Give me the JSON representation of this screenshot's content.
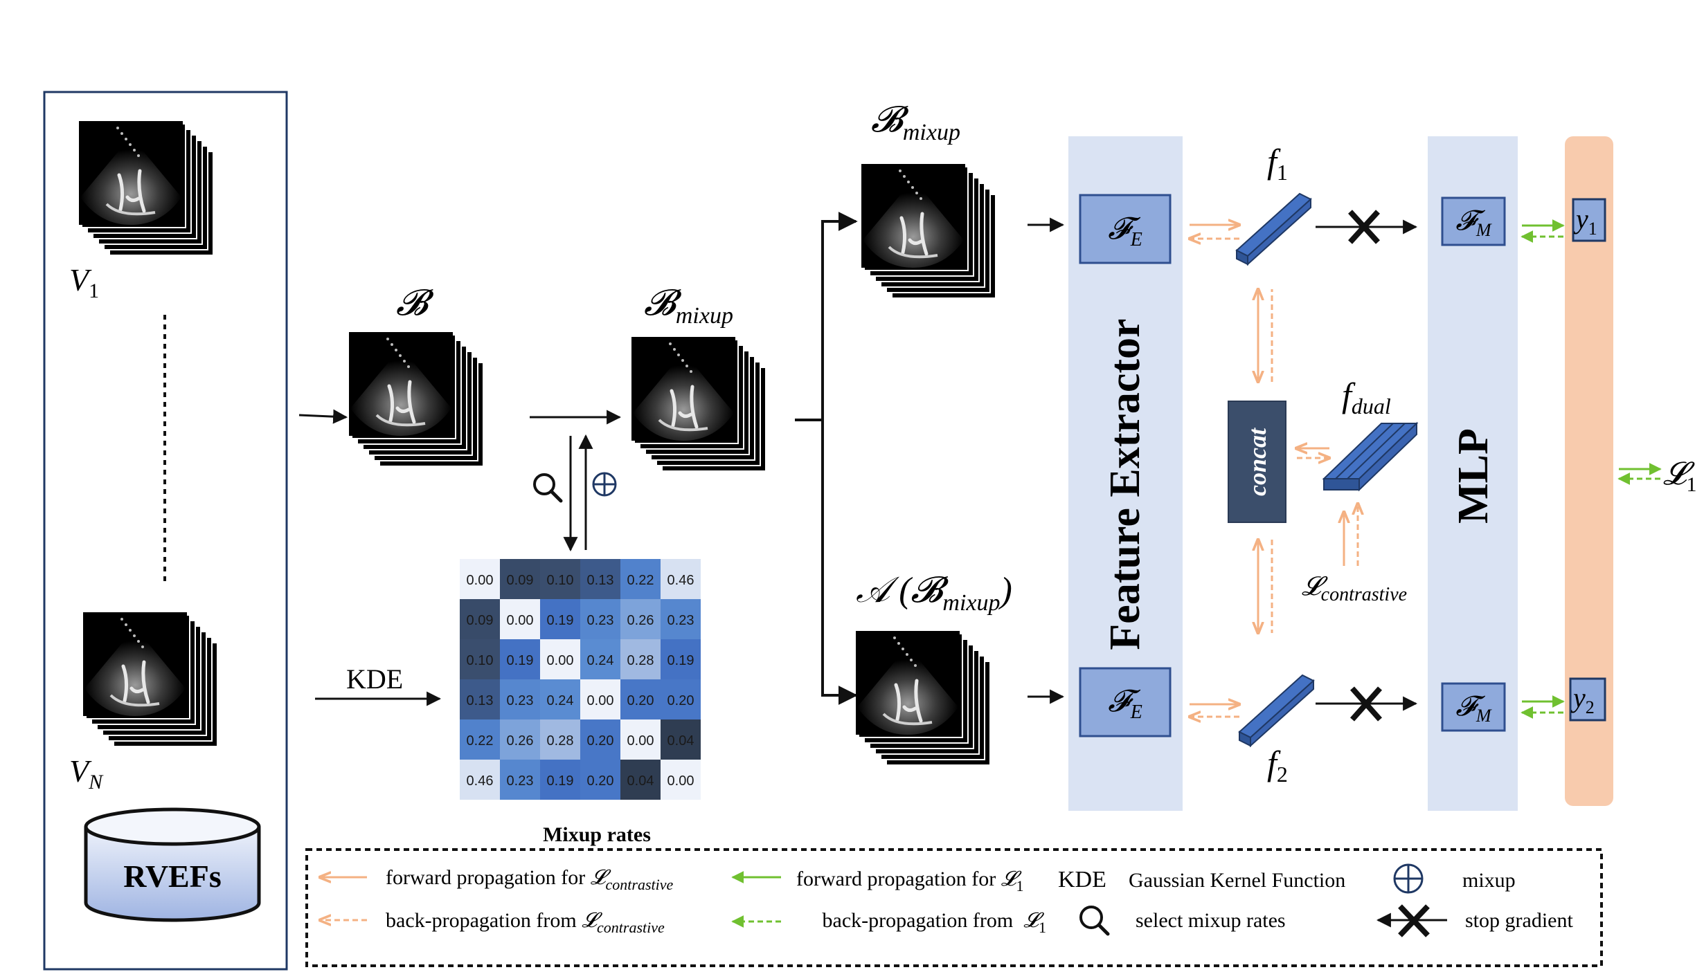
{
  "left_panel": {
    "v1_label": {
      "base": "V",
      "sub": "1"
    },
    "vn_label": {
      "base": "V",
      "sub": "N"
    },
    "dataset_label": "RVEFs"
  },
  "batch_labels": {
    "b": {
      "base": "𝓑",
      "sub": ""
    },
    "b_mixup": {
      "base": "𝓑",
      "sub": "mixup"
    },
    "b_mixup_top": {
      "base": "𝓑",
      "sub": "mixup"
    },
    "a_b_mixup": {
      "pre": "𝒜 (",
      "base": "𝓑",
      "sub": "mixup",
      "post": ")"
    }
  },
  "kde_label": "KDE",
  "mixup_matrix": {
    "caption": "Mixup rates",
    "values": [
      [
        "0.00",
        "0.09",
        "0.10",
        "0.13",
        "0.22",
        "0.46"
      ],
      [
        "0.09",
        "0.00",
        "0.19",
        "0.23",
        "0.26",
        "0.23"
      ],
      [
        "0.10",
        "0.19",
        "0.00",
        "0.24",
        "0.28",
        "0.19"
      ],
      [
        "0.13",
        "0.23",
        "0.24",
        "0.00",
        "0.20",
        "0.20"
      ],
      [
        "0.22",
        "0.26",
        "0.28",
        "0.20",
        "0.00",
        "0.04"
      ],
      [
        "0.46",
        "0.23",
        "0.19",
        "0.20",
        "0.04",
        "0.00"
      ]
    ]
  },
  "feature_extractor": {
    "title": "Feature Extractor",
    "fe_top": {
      "base": "𝓕",
      "sub": "E"
    },
    "fe_bottom": {
      "base": "𝓕",
      "sub": "E"
    }
  },
  "features": {
    "f1": {
      "base": "f",
      "sub": "1"
    },
    "f2": {
      "base": "f",
      "sub": "2"
    },
    "fdual": {
      "base": "f",
      "sub": "dual"
    },
    "concat": "concat",
    "l_contrastive": {
      "base": "𝓛",
      "sub": "contrastive"
    }
  },
  "mlp": {
    "title": "MLP",
    "fm_top": {
      "base": "𝓕",
      "sub": "M"
    },
    "fm_bottom": {
      "base": "𝓕",
      "sub": "M"
    }
  },
  "outputs": {
    "y1": {
      "base": "y",
      "sub": "1"
    },
    "y2": {
      "base": "y",
      "sub": "2"
    },
    "l1": {
      "base": "𝓛",
      "sub": "1"
    }
  },
  "legend": {
    "fwd_contrastive": {
      "text": "forward propagation for ",
      "base": "𝓛",
      "sub": "contrastive"
    },
    "back_contrastive": {
      "text": "back-propagation from ",
      "base": "𝓛",
      "sub": "contrastive"
    },
    "fwd_l1": {
      "text": "forward propagation for ",
      "base": "𝓛",
      "sub": "1"
    },
    "back_l1": {
      "text": "back-propagation from  ",
      "base": "𝓛",
      "sub": "1"
    },
    "kde_abbrev": "KDE",
    "kde_desc": "Gaussian Kernel Function",
    "select_desc": "select mixup rates",
    "mixup_desc": "mixup",
    "stop_desc": "stop gradient"
  },
  "colors": {
    "panel_blue": "#dae3f3",
    "block_blue": "#4472c4",
    "block_light": "#8faadc",
    "concat_fill": "#3b4e6b",
    "loss_orange": "#f8cbad",
    "orange_arrow": "#f4b183",
    "green_arrow": "#70c030",
    "border_navy": "#1f3864"
  }
}
